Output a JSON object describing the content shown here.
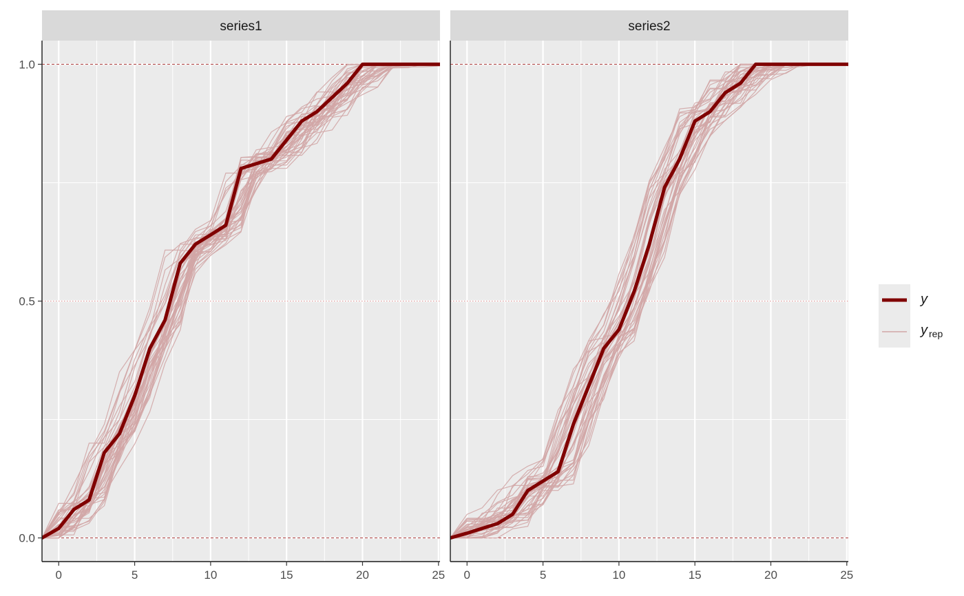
{
  "chart_data": {
    "type": "line",
    "xlim": [
      -1.1,
      25.1
    ],
    "ylim": [
      -0.05,
      1.05
    ],
    "x_ticks": [
      0,
      5,
      10,
      15,
      20,
      25
    ],
    "y_ticks": [
      0.0,
      0.5,
      1.0
    ],
    "y_tick_labels": [
      "0.0",
      "0.5",
      "1.0"
    ],
    "x_tick_labels": [
      "0",
      "5",
      "10",
      "15",
      "20",
      "25"
    ],
    "grid": true,
    "legend_placement": "right",
    "colors": {
      "y": "#800000",
      "yrep": "#d1a6a6",
      "panel_bg": "#ebebeb",
      "strip_bg": "#d9d9d9",
      "refline": "#a83232"
    },
    "legend": [
      {
        "key": "y",
        "label": "y",
        "sub": ""
      },
      {
        "key": "yrep",
        "label": "y",
        "sub": "rep"
      }
    ],
    "panels": [
      {
        "strip": "series1",
        "y": {
          "x": [
            -1.1,
            0,
            1,
            2,
            3,
            4,
            5,
            6,
            7,
            8,
            9,
            10,
            11,
            12,
            13,
            14,
            15,
            16,
            17,
            18,
            19,
            20,
            21,
            22,
            23,
            24,
            25.1
          ],
          "values": [
            0,
            0.02,
            0.06,
            0.08,
            0.18,
            0.22,
            0.3,
            0.4,
            0.46,
            0.58,
            0.62,
            0.64,
            0.66,
            0.78,
            0.79,
            0.8,
            0.84,
            0.88,
            0.9,
            0.93,
            0.96,
            1.0,
            1.0,
            1.0,
            1.0,
            1.0,
            1.0
          ]
        }
      },
      {
        "strip": "series2",
        "y": {
          "x": [
            -1.1,
            0,
            1,
            2,
            3,
            4,
            5,
            6,
            7,
            8,
            9,
            10,
            11,
            12,
            13,
            14,
            15,
            16,
            17,
            18,
            19,
            20,
            21,
            22,
            23,
            24,
            25.1
          ],
          "values": [
            0,
            0.01,
            0.02,
            0.03,
            0.05,
            0.1,
            0.12,
            0.14,
            0.24,
            0.32,
            0.4,
            0.44,
            0.52,
            0.62,
            0.74,
            0.8,
            0.88,
            0.9,
            0.94,
            0.96,
            1.0,
            1.0,
            1.0,
            1.0,
            1.0,
            1.0,
            1.0
          ]
        }
      }
    ]
  }
}
